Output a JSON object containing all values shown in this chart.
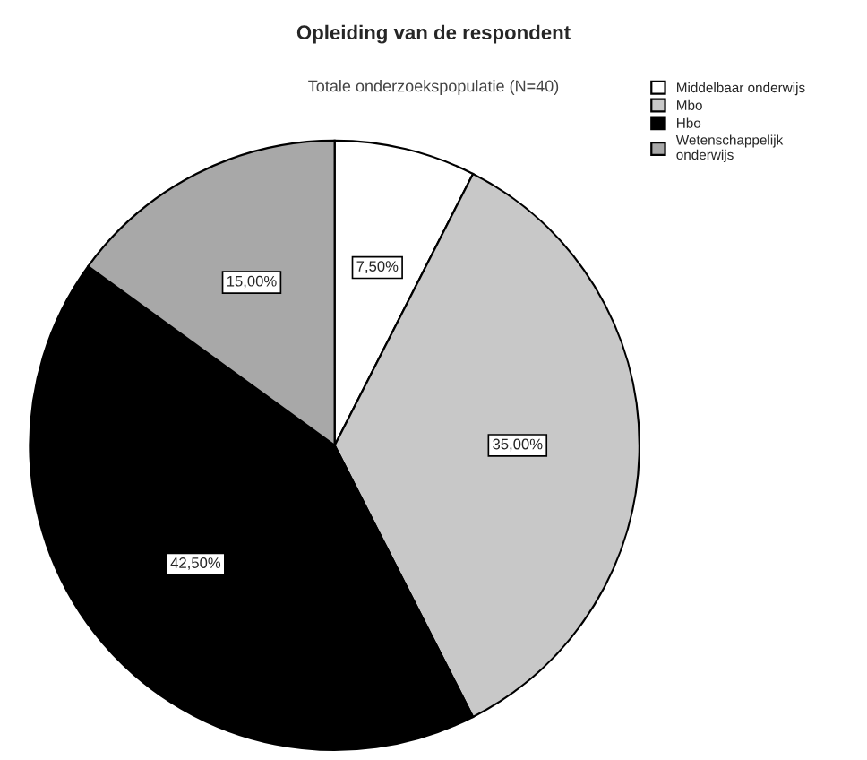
{
  "chart_data": {
    "type": "pie",
    "title": "Opleiding van de respondent",
    "subtitle": "Totale onderzoekspopulatie (N=40)",
    "categories": [
      "Middelbaar onderwijs",
      "Mbo",
      "Hbo",
      "Wetenschappelijk\nonderwijs"
    ],
    "values": [
      7.5,
      35,
      42.5,
      15
    ],
    "value_labels": [
      "7,50%",
      "35,00%",
      "42,50%",
      "15,00%"
    ],
    "colors": [
      "#ffffff",
      "#c8c8c8",
      "#000000",
      "#a8a8a8"
    ],
    "legend": "right"
  }
}
